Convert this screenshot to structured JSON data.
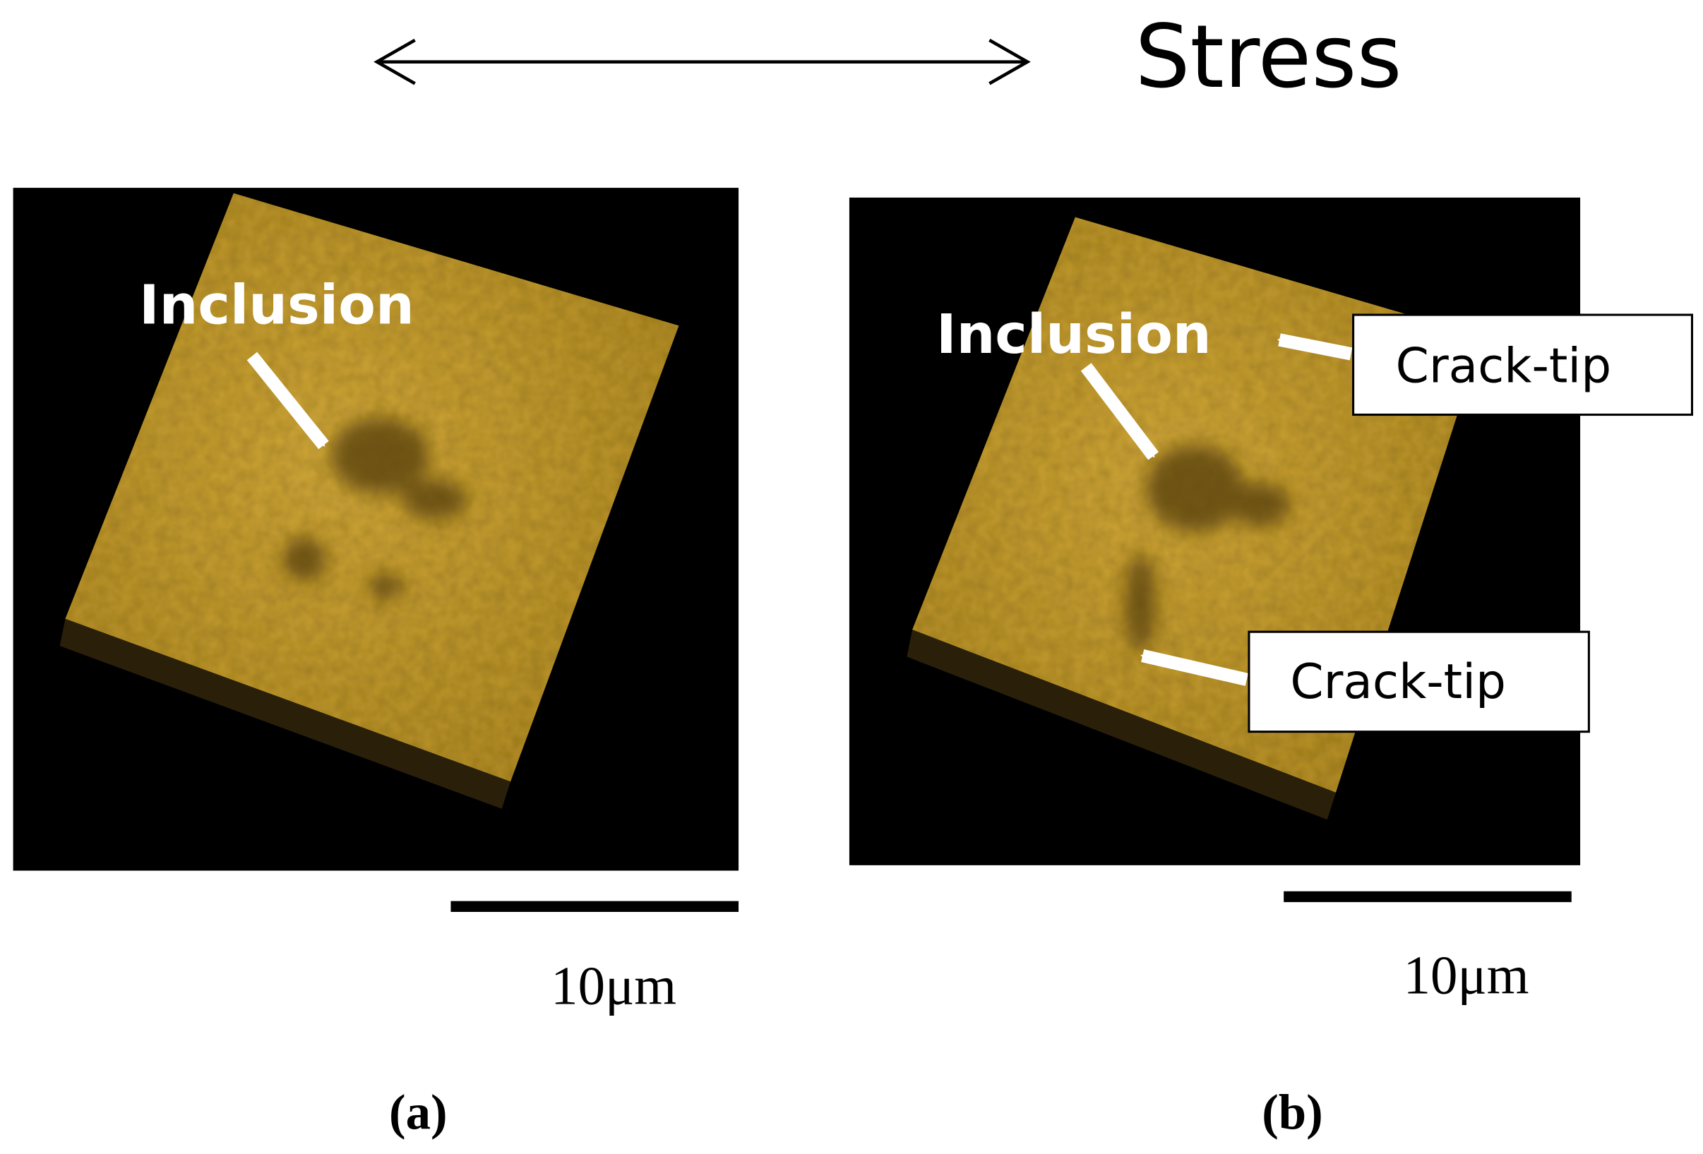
{
  "header": {
    "title": "Stress"
  },
  "panels": [
    {
      "label": "(a)",
      "annotations": [
        "Inclusion"
      ],
      "scale_bar": "10μm"
    },
    {
      "label": "(b)",
      "annotations": [
        "Inclusion",
        "Crack-tip",
        "Crack-tip"
      ],
      "scale_bar": "10μm"
    }
  ]
}
